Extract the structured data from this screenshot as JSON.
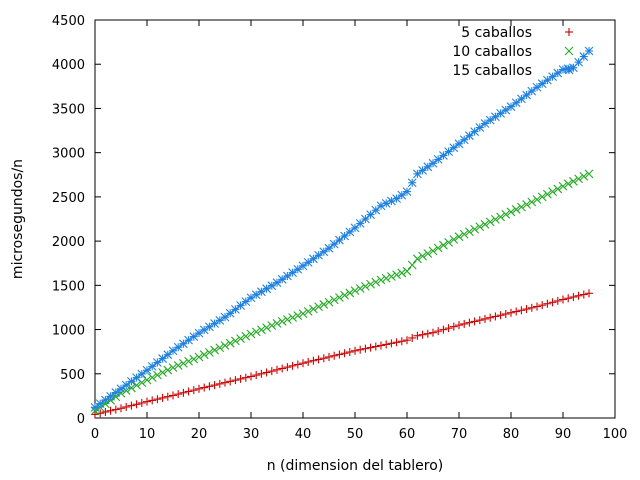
{
  "chart_data": {
    "type": "scatter",
    "title": "",
    "xlabel": "n (dimension del tablero)",
    "ylabel": "microsegundos/n",
    "xlim": [
      0,
      100
    ],
    "ylim": [
      0,
      4500
    ],
    "xticks": [
      0,
      10,
      20,
      30,
      40,
      50,
      60,
      70,
      80,
      90,
      100
    ],
    "yticks": [
      0,
      500,
      1000,
      1500,
      2000,
      2500,
      3000,
      3500,
      4000,
      4500
    ],
    "grid": false,
    "legend_position": "top-right",
    "series": [
      {
        "name": "5 caballos",
        "marker": "plus",
        "color": "#cc0000",
        "x": [
          0,
          5,
          10,
          15,
          20,
          25,
          30,
          35,
          40,
          45,
          50,
          55,
          60,
          62,
          65,
          70,
          75,
          80,
          85,
          90,
          95
        ],
        "y": [
          40,
          110,
          185,
          255,
          330,
          400,
          470,
          545,
          620,
          690,
          760,
          820,
          880,
          930,
          965,
          1050,
          1120,
          1190,
          1260,
          1340,
          1410
        ]
      },
      {
        "name": "10 caballos",
        "marker": "cross",
        "color": "#22aa22",
        "x": [
          0,
          5,
          10,
          15,
          20,
          25,
          30,
          35,
          40,
          45,
          50,
          55,
          60,
          62,
          65,
          70,
          75,
          80,
          85,
          90,
          95
        ],
        "y": [
          80,
          280,
          430,
          570,
          690,
          820,
          950,
          1070,
          1180,
          1310,
          1440,
          1560,
          1660,
          1800,
          1890,
          2050,
          2190,
          2330,
          2470,
          2620,
          2760
        ]
      },
      {
        "name": "15 caballos",
        "marker": "star",
        "color": "#1e80e0",
        "x": [
          0,
          5,
          10,
          15,
          20,
          25,
          30,
          35,
          40,
          45,
          50,
          55,
          58,
          60,
          62,
          65,
          70,
          75,
          80,
          85,
          90,
          92,
          95
        ],
        "y": [
          120,
          330,
          540,
          760,
          960,
          1140,
          1360,
          1530,
          1720,
          1920,
          2150,
          2400,
          2480,
          2560,
          2760,
          2880,
          3100,
          3330,
          3520,
          3740,
          3940,
          3960,
          4150
        ]
      }
    ]
  }
}
